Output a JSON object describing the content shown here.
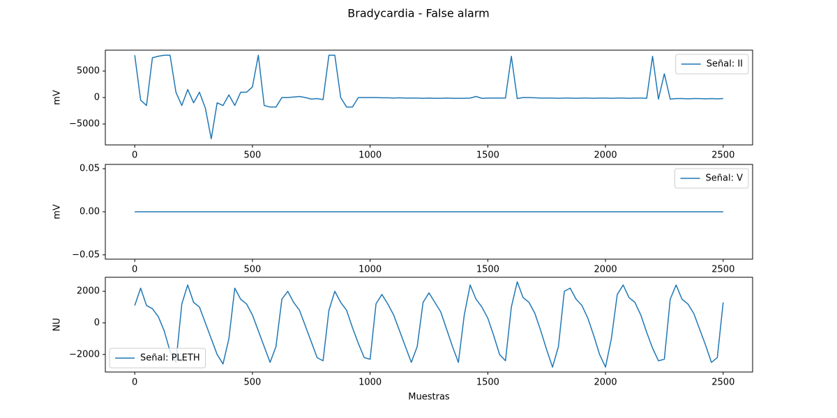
{
  "title": "Bradycardia - False alarm",
  "chart_data": [
    {
      "type": "line",
      "ylabel": "mV",
      "legend": "upper right",
      "xlim": [
        -125,
        2625
      ],
      "xticks": [
        0,
        500,
        1000,
        1500,
        2000,
        2500
      ],
      "ylim": [
        -8950,
        8950
      ],
      "yticks": [
        {
          "value": -5000,
          "label": "−5000"
        },
        0,
        5000
      ],
      "x": [
        0,
        25,
        50,
        75,
        100,
        125,
        150,
        175,
        200,
        225,
        250,
        275,
        300,
        325,
        350,
        375,
        400,
        425,
        450,
        475,
        500,
        525,
        550,
        575,
        600,
        625,
        650,
        675,
        700,
        725,
        750,
        775,
        800,
        825,
        850,
        875,
        900,
        925,
        950,
        975,
        1000,
        1025,
        1050,
        1075,
        1100,
        1125,
        1150,
        1175,
        1200,
        1225,
        1250,
        1275,
        1300,
        1325,
        1350,
        1375,
        1400,
        1425,
        1450,
        1475,
        1500,
        1525,
        1550,
        1575,
        1600,
        1625,
        1650,
        1675,
        1700,
        1725,
        1750,
        1775,
        1800,
        1825,
        1850,
        1875,
        1900,
        1925,
        1950,
        1975,
        2000,
        2025,
        2050,
        2075,
        2100,
        2125,
        2150,
        2175,
        2200,
        2225,
        2250,
        2275,
        2300,
        2325,
        2350,
        2375,
        2400,
        2425,
        2450,
        2475,
        2500
      ],
      "series": [
        {
          "name": "Señal: II",
          "color": "#1f77b4",
          "values": [
            8000,
            -500,
            -1500,
            7500,
            7800,
            8000,
            8000,
            1000,
            -1500,
            1500,
            -1000,
            1000,
            -2000,
            -7800,
            -1000,
            -1500,
            500,
            -1500,
            1000,
            1000,
            2000,
            8000,
            -1500,
            -1800,
            -1800,
            0,
            0,
            100,
            200,
            0,
            -300,
            -200,
            -400,
            8000,
            8000,
            0,
            -1800,
            -1800,
            0,
            0,
            0,
            0,
            -50,
            -50,
            -100,
            -50,
            -100,
            -100,
            -100,
            -150,
            -100,
            -150,
            -150,
            -100,
            -150,
            -150,
            -150,
            -100,
            200,
            -150,
            -100,
            -100,
            -100,
            -100,
            7800,
            -200,
            0,
            0,
            -50,
            -100,
            -100,
            -100,
            -150,
            -100,
            -100,
            -150,
            -100,
            -100,
            -150,
            -100,
            -100,
            -150,
            -100,
            -100,
            -150,
            -100,
            -100,
            -150,
            7800,
            -300,
            4500,
            -300,
            -200,
            -200,
            -250,
            -200,
            -200,
            -250,
            -200,
            -250,
            -200
          ]
        }
      ]
    },
    {
      "type": "line",
      "ylabel": "mV",
      "legend": "upper right",
      "xlim": [
        -125,
        2625
      ],
      "xticks": [
        0,
        500,
        1000,
        1500,
        2000,
        2500
      ],
      "ylim": [
        -0.055,
        0.055
      ],
      "yticks": [
        {
          "value": -0.05,
          "label": "−0.05"
        },
        {
          "value": 0,
          "label": "0.00"
        },
        0.05
      ],
      "x": [
        0,
        2500
      ],
      "series": [
        {
          "name": "Señal: V",
          "color": "#1f77b4",
          "values": [
            0,
            0
          ]
        }
      ]
    },
    {
      "type": "line",
      "ylabel": "NU",
      "xlabel": "Muestras",
      "legend": "lower left",
      "xlim": [
        -125,
        2625
      ],
      "xticks": [
        0,
        500,
        1000,
        1500,
        2000,
        2500
      ],
      "ylim": [
        -3111,
        2889
      ],
      "yticks": [
        {
          "value": -2000,
          "label": "−2000"
        },
        0,
        2000
      ],
      "x": [
        0,
        25,
        50,
        75,
        100,
        125,
        150,
        175,
        200,
        225,
        250,
        275,
        300,
        325,
        350,
        375,
        400,
        425,
        450,
        475,
        500,
        525,
        550,
        575,
        600,
        625,
        650,
        675,
        700,
        725,
        750,
        775,
        800,
        825,
        850,
        875,
        900,
        925,
        950,
        975,
        1000,
        1025,
        1050,
        1075,
        1100,
        1125,
        1150,
        1175,
        1200,
        1225,
        1250,
        1275,
        1300,
        1325,
        1350,
        1375,
        1400,
        1425,
        1450,
        1475,
        1500,
        1525,
        1550,
        1575,
        1600,
        1625,
        1650,
        1675,
        1700,
        1725,
        1750,
        1775,
        1800,
        1825,
        1850,
        1875,
        1900,
        1925,
        1950,
        1975,
        2000,
        2025,
        2050,
        2075,
        2100,
        2125,
        2150,
        2175,
        2200,
        2225,
        2250,
        2275,
        2300,
        2325,
        2350,
        2375,
        2400,
        2425,
        2450,
        2475,
        2500
      ],
      "series": [
        {
          "name": "Señal: PLETH",
          "color": "#1f77b4",
          "values": [
            1100,
            2200,
            1100,
            900,
            400,
            -500,
            -1800,
            -2500,
            1200,
            2400,
            1300,
            1000,
            0,
            -1000,
            -2000,
            -2600,
            -1000,
            2200,
            1500,
            1200,
            500,
            -500,
            -1500,
            -2500,
            -1500,
            1500,
            2000,
            1300,
            800,
            -200,
            -1200,
            -2200,
            -2400,
            800,
            2000,
            1300,
            800,
            -300,
            -1300,
            -2200,
            -2300,
            1200,
            1800,
            1200,
            500,
            -500,
            -1500,
            -2500,
            -1500,
            1300,
            1900,
            1300,
            700,
            -400,
            -1500,
            -2500,
            500,
            2400,
            1500,
            1000,
            300,
            -800,
            -2000,
            -2400,
            1000,
            2600,
            1600,
            1300,
            600,
            -500,
            -1700,
            -2800,
            -1500,
            2000,
            2200,
            1500,
            1100,
            300,
            -800,
            -2000,
            -2800,
            -1000,
            1800,
            2400,
            1600,
            1300,
            500,
            -600,
            -1600,
            -2400,
            -2300,
            1500,
            2400,
            1500,
            1200,
            600,
            -400,
            -1400,
            -2500,
            -2200,
            1300
          ]
        }
      ]
    }
  ]
}
